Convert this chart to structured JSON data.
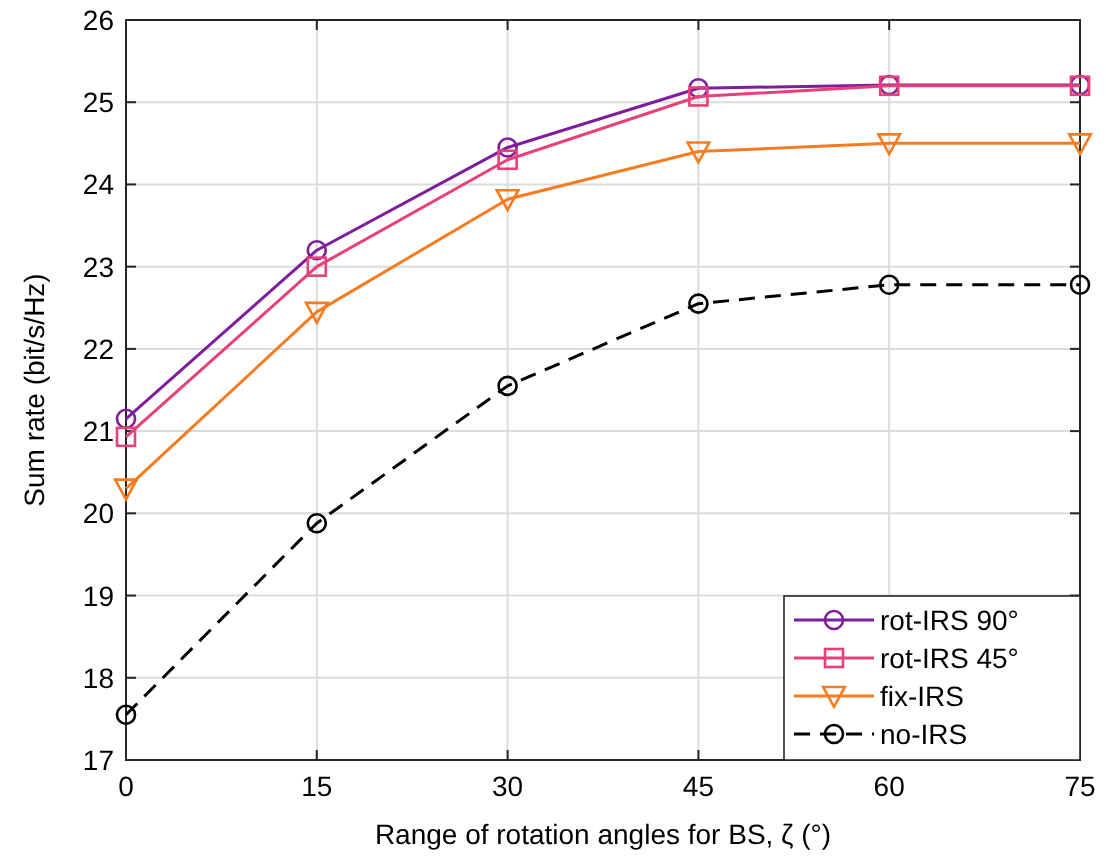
{
  "chart_data": {
    "type": "line",
    "xlabel": "Range of rotation angles for BS, ζ (°)",
    "ylabel": "Sum rate (bit/s/Hz)",
    "x": [
      0,
      15,
      30,
      45,
      60,
      75
    ],
    "xlim": [
      0,
      75
    ],
    "xticks": [
      0,
      15,
      30,
      45,
      60,
      75
    ],
    "ylim": [
      17,
      26
    ],
    "yticks": [
      17,
      18,
      19,
      20,
      21,
      22,
      23,
      24,
      25,
      26
    ],
    "grid": true,
    "legend": "bottom right",
    "series": [
      {
        "name": "rot-IRS 90°",
        "color": "#7e1e9c",
        "marker": "circle",
        "line_style": "solid",
        "values": [
          21.15,
          23.2,
          24.45,
          25.17,
          25.21,
          25.21
        ]
      },
      {
        "name": "rot-IRS 45°",
        "color": "#e8407a",
        "marker": "square",
        "line_style": "solid",
        "values": [
          20.93,
          23.0,
          24.3,
          25.07,
          25.2,
          25.2
        ]
      },
      {
        "name": "fix-IRS",
        "color": "#f57c20",
        "marker": "triangle",
        "line_style": "solid",
        "values": [
          20.3,
          22.45,
          23.82,
          24.4,
          24.5,
          24.5
        ]
      },
      {
        "name": "no-IRS",
        "color": "#000000",
        "marker": "circle",
        "line_style": "dashed",
        "values": [
          17.55,
          19.88,
          21.55,
          22.55,
          22.78,
          22.78
        ]
      }
    ]
  }
}
